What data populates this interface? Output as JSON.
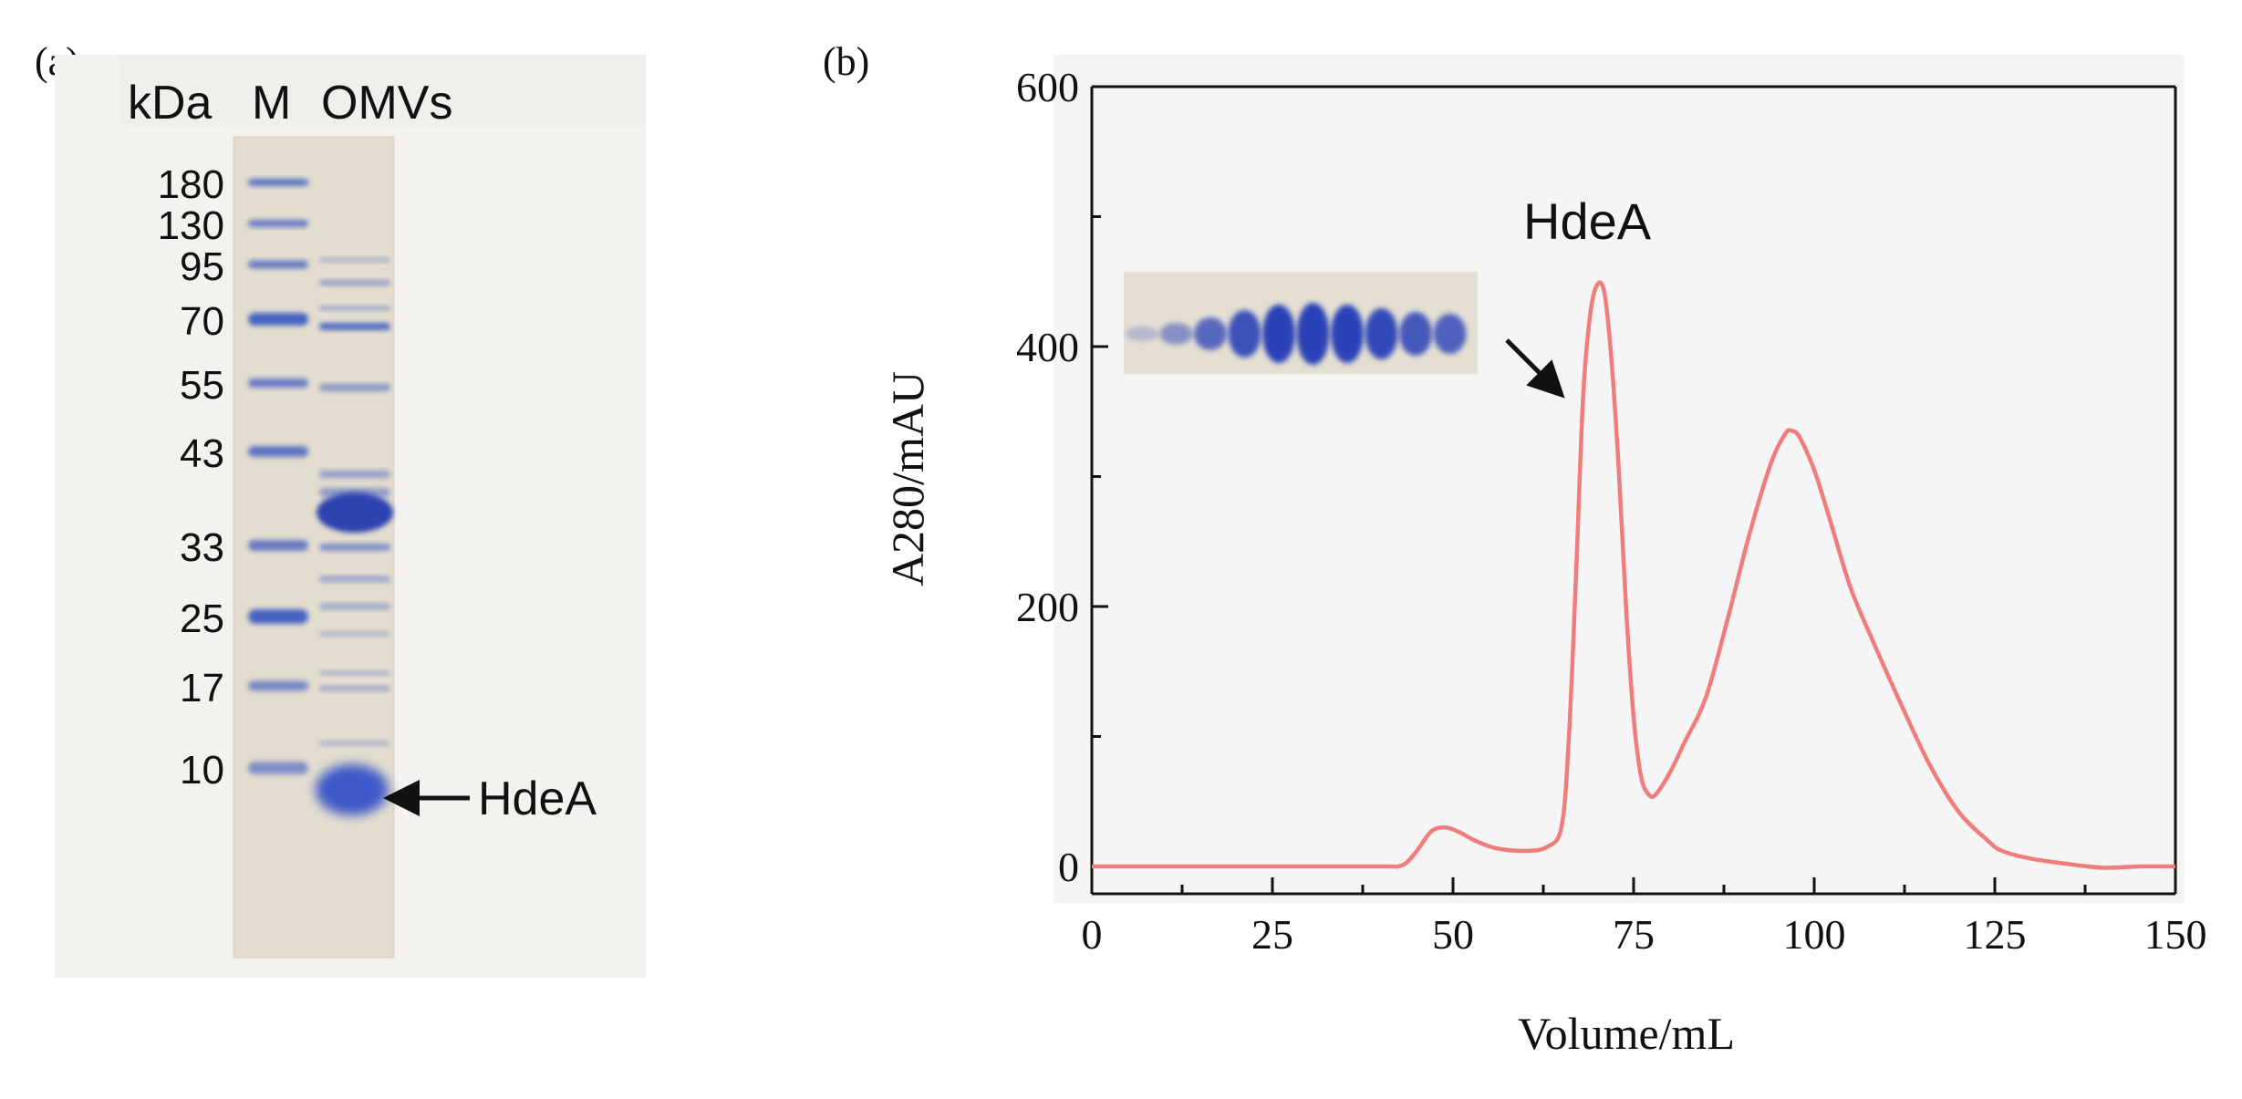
{
  "panel_a": {
    "label": "(a)",
    "header": {
      "unit": "kDa",
      "marker_lane": "M",
      "sample_lane": "OMVs"
    },
    "marker_sizes": [
      "180",
      "130",
      "95",
      "70",
      "55",
      "43",
      "33",
      "25",
      "17",
      "10"
    ],
    "annotation": "HdeA",
    "colors": {
      "gel": "#e3ddcf",
      "band": "#3d5cc0"
    }
  },
  "panel_b": {
    "label": "(b)",
    "peak_label": "HdeA",
    "inset_gel_lanes": 10
  },
  "chart_data": {
    "type": "line",
    "xlabel": "Volume/mL",
    "ylabel": "A280/mAU",
    "xlim": [
      0,
      150
    ],
    "ylim": [
      -30,
      600
    ],
    "x_ticks": [
      0,
      25,
      50,
      75,
      100,
      125,
      150
    ],
    "y_ticks": [
      0,
      200,
      400,
      600
    ],
    "grid": false,
    "line_color": "#f07d7b",
    "x": [
      0,
      10,
      20,
      30,
      40,
      43,
      45,
      47,
      49,
      51,
      53,
      56,
      60,
      63,
      65,
      66,
      67,
      68,
      69,
      70,
      71,
      72,
      73,
      74,
      75,
      76,
      77,
      78,
      80,
      82,
      85,
      88,
      91,
      94,
      96,
      97,
      98,
      100,
      102,
      105,
      108,
      112,
      116,
      120,
      124,
      126,
      130,
      135,
      140,
      145,
      150
    ],
    "y": [
      0,
      0,
      0,
      0,
      0,
      1,
      12,
      27,
      30,
      26,
      20,
      14,
      12,
      15,
      30,
      95,
      220,
      360,
      425,
      448,
      440,
      385,
      300,
      195,
      115,
      70,
      56,
      55,
      72,
      95,
      130,
      190,
      255,
      310,
      333,
      335,
      330,
      305,
      270,
      215,
      175,
      125,
      78,
      42,
      20,
      12,
      6,
      2,
      -1,
      0,
      0
    ]
  }
}
